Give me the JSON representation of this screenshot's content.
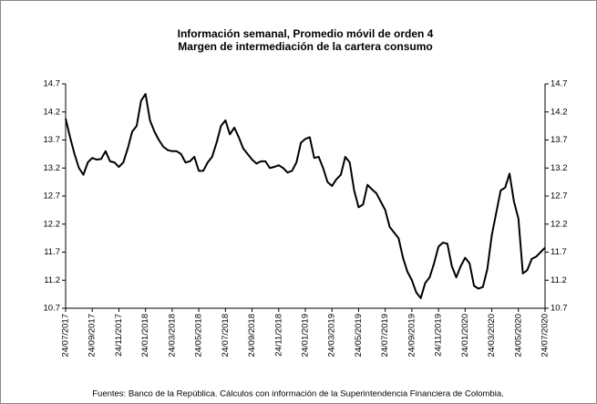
{
  "chart_data": {
    "type": "line",
    "title": "Información semanal, Promedio móvil de orden 4",
    "subtitle": "Margen de intermediación de la cartera consumo",
    "note": "Fuentes: Banco de la República. Cálculos con información de la Superintendencia Financiera de Colombia.",
    "categories": [
      "24/07/2017",
      null,
      null,
      null,
      null,
      null,
      "24/09/2017",
      null,
      null,
      null,
      null,
      null,
      "24/11/2017",
      null,
      null,
      null,
      null,
      null,
      "24/01/2018",
      null,
      null,
      null,
      null,
      null,
      "24/03/2018",
      null,
      null,
      null,
      null,
      null,
      "24/05/2018",
      null,
      null,
      null,
      null,
      null,
      "24/07/2018",
      null,
      null,
      null,
      null,
      null,
      "24/09/2018",
      null,
      null,
      null,
      null,
      null,
      "24/11/2018",
      null,
      null,
      null,
      null,
      null,
      "24/01/2019",
      null,
      null,
      null,
      null,
      null,
      "24/03/2019",
      null,
      null,
      null,
      null,
      null,
      "24/05/2019",
      null,
      null,
      null,
      null,
      null,
      "24/07/2019",
      null,
      null,
      null,
      null,
      null,
      "24/09/2019",
      null,
      null,
      null,
      null,
      null,
      "24/11/2019",
      null,
      null,
      null,
      null,
      null,
      "24/01/2020",
      null,
      null,
      null,
      null,
      null,
      "24/03/2020",
      null,
      null,
      null,
      null,
      null,
      "24/05/2020",
      null,
      null,
      null,
      null,
      null,
      "24/07/2020"
    ],
    "series": [
      {
        "color": "#000000",
        "values": [
          14.08,
          13.75,
          13.45,
          13.2,
          13.08,
          13.3,
          13.38,
          13.35,
          13.36,
          13.5,
          13.32,
          13.3,
          13.22,
          13.3,
          13.55,
          13.85,
          13.95,
          14.4,
          14.52,
          14.05,
          13.85,
          13.7,
          13.58,
          13.52,
          13.5,
          13.5,
          13.45,
          13.3,
          13.32,
          13.4,
          13.15,
          13.15,
          13.3,
          13.4,
          13.65,
          13.95,
          14.05,
          13.8,
          13.92,
          13.75,
          13.55,
          13.45,
          13.35,
          13.28,
          13.32,
          13.32,
          13.2,
          13.22,
          13.25,
          13.2,
          13.12,
          13.15,
          13.3,
          13.65,
          13.72,
          13.75,
          13.38,
          13.4,
          13.2,
          12.95,
          12.88,
          13.0,
          13.08,
          13.4,
          13.3,
          12.8,
          12.5,
          12.55,
          12.9,
          12.82,
          12.75,
          12.6,
          12.45,
          12.15,
          12.05,
          11.95,
          11.6,
          11.35,
          11.2,
          10.98,
          10.88,
          11.15,
          11.25,
          11.5,
          11.8,
          11.87,
          11.85,
          11.45,
          11.25,
          11.45,
          11.6,
          11.5,
          11.1,
          11.05,
          11.08,
          11.4,
          12.0,
          12.4,
          12.8,
          12.85,
          13.1,
          12.6,
          12.3,
          11.32,
          11.38,
          11.58,
          11.62,
          11.7,
          11.78
        ]
      }
    ],
    "ylim": [
      10.7,
      14.7
    ],
    "yticks": [
      10.7,
      11.2,
      11.7,
      12.2,
      12.7,
      13.2,
      13.7,
      14.2,
      14.7
    ],
    "y2lim": [
      10.7,
      14.7
    ],
    "y2ticks": [
      10.7,
      11.2,
      11.7,
      12.2,
      12.7,
      13.2,
      13.7,
      14.2,
      14.7
    ],
    "grid": false
  }
}
